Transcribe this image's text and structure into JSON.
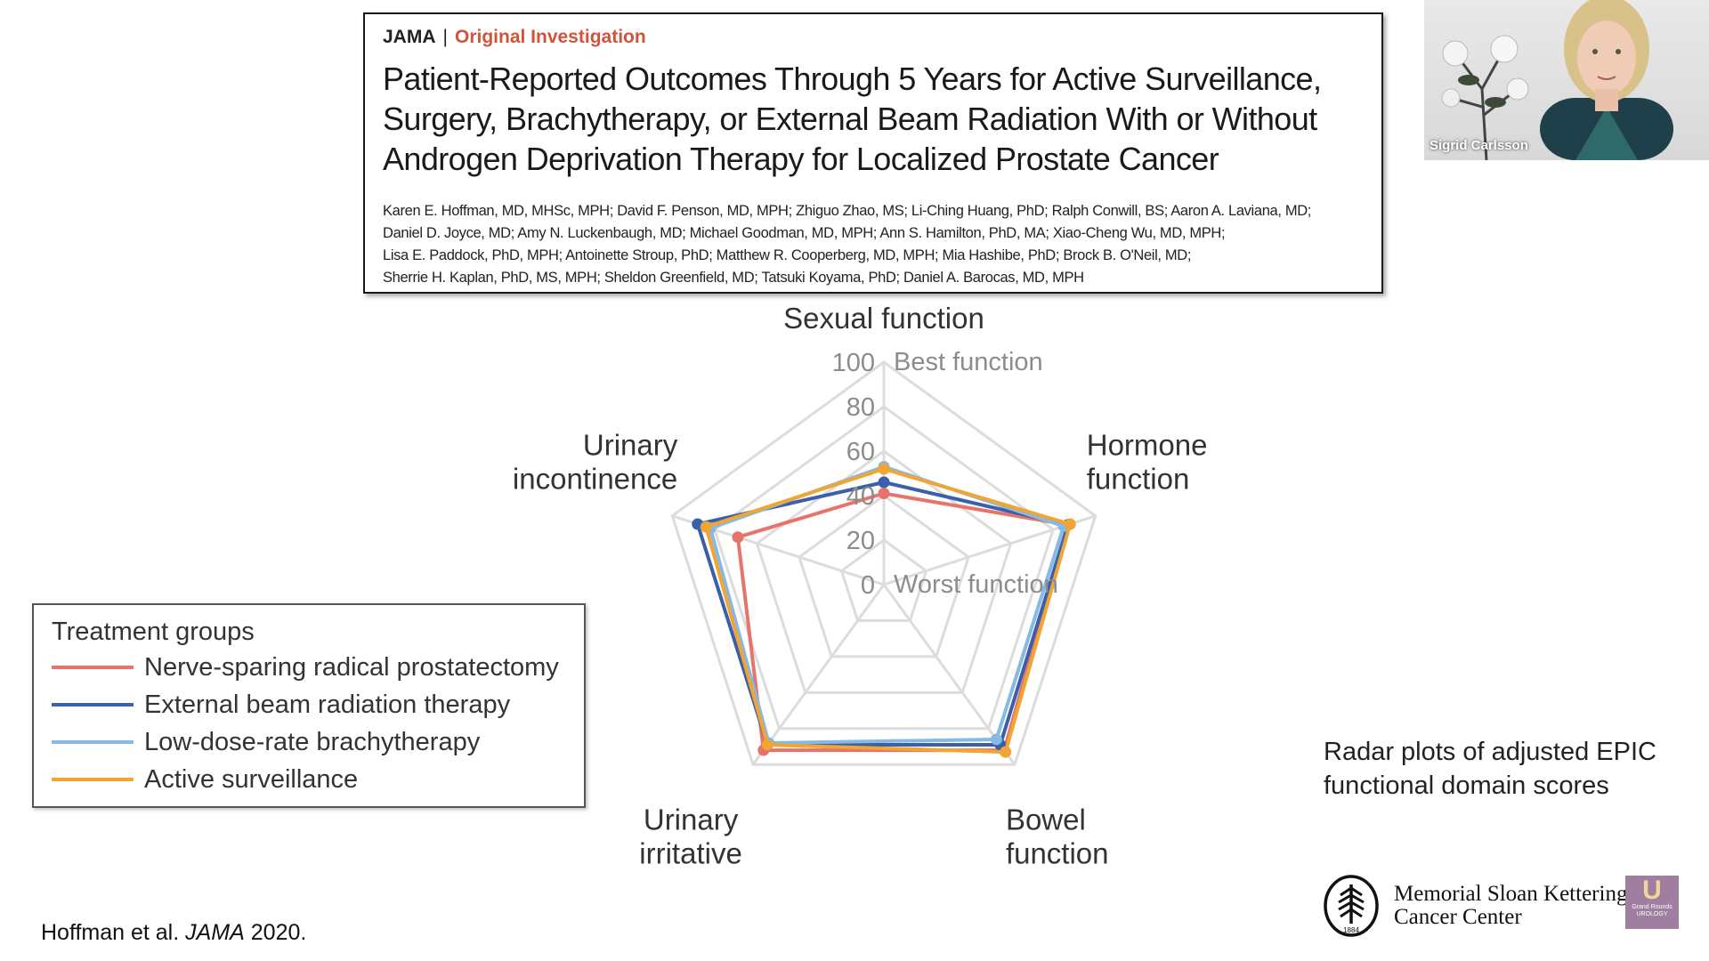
{
  "article": {
    "journal": "JAMA",
    "separator": "|",
    "section": "Original Investigation",
    "title_lines": [
      "Patient-Reported Outcomes Through 5 Years for Active Surveillance,",
      "Surgery, Brachytherapy, or External Beam Radiation With or Without",
      "Androgen Deprivation Therapy for Localized Prostate Cancer"
    ],
    "author_lines": [
      "Karen E. Hoffman, MD, MHSc, MPH; David F. Penson, MD, MPH; Zhiguo Zhao, MS; Li-Ching Huang, PhD; Ralph Conwill, BS; Aaron A. Laviana, MD;",
      "Daniel D. Joyce, MD; Amy N. Luckenbaugh, MD; Michael Goodman, MD, MPH; Ann S. Hamilton, PhD, MA; Xiao-Cheng Wu, MD, MPH;",
      "Lisa E. Paddock, PhD, MPH; Antoinette Stroup, PhD; Matthew R. Cooperberg, MD, MPH; Mia Hashibe, PhD; Brock B. O'Neil, MD;",
      "Sherrie H. Kaplan, PhD, MS, MPH; Sheldon Greenfield, MD; Tatsuki Koyama, PhD; Daniel A. Barocas, MD, MPH"
    ]
  },
  "webcam": {
    "speaker_name": "Sigrid Carlsson"
  },
  "caption_lines": [
    "Radar plots of adjusted EPIC",
    "functional domain scores"
  ],
  "citation": {
    "authors": "Hoffman et al. ",
    "journal": "JAMA",
    "year": " 2020."
  },
  "logo": {
    "line1": "Memorial Sloan Kettering",
    "line2": "Cancer Center",
    "year": "1884"
  },
  "badge": {
    "letter": "U",
    "text1": "Grand Rounds",
    "text2": "UROLOGY"
  },
  "chart_data": {
    "type": "radar",
    "axes": [
      "Sexual function",
      "Hormone function",
      "Bowel function",
      "Urinary irritative",
      "Urinary incontinence"
    ],
    "axis_label_lines": [
      [
        "Sexual function"
      ],
      [
        "Hormone",
        "function"
      ],
      [
        "Bowel",
        "function"
      ],
      [
        "Urinary",
        "irritative"
      ],
      [
        "Urinary",
        "incontinence"
      ]
    ],
    "range": [
      0,
      100
    ],
    "ticks": [
      0,
      20,
      40,
      60,
      80,
      100
    ],
    "tick_labels": [
      "0",
      "20",
      "40",
      "60",
      "80",
      "100"
    ],
    "annotations": {
      "max": "Best function",
      "min": "Worst function"
    },
    "legend_title": "Treatment groups",
    "legend_position": "left",
    "series": [
      {
        "name": "Nerve-sparing radical prostatectomy",
        "color": "#e8736a",
        "values": [
          41,
          87,
          92,
          92,
          69
        ]
      },
      {
        "name": "External beam radiation therapy",
        "color": "#3b5fa8",
        "values": [
          46,
          87,
          89,
          89,
          88
        ]
      },
      {
        "name": "Low-dose-rate brachytherapy",
        "color": "#86b9e3",
        "values": [
          53,
          85,
          86,
          88,
          82
        ]
      },
      {
        "name": "Active surveillance",
        "color": "#f0a535",
        "values": [
          52,
          88,
          93,
          89,
          84
        ]
      }
    ]
  }
}
